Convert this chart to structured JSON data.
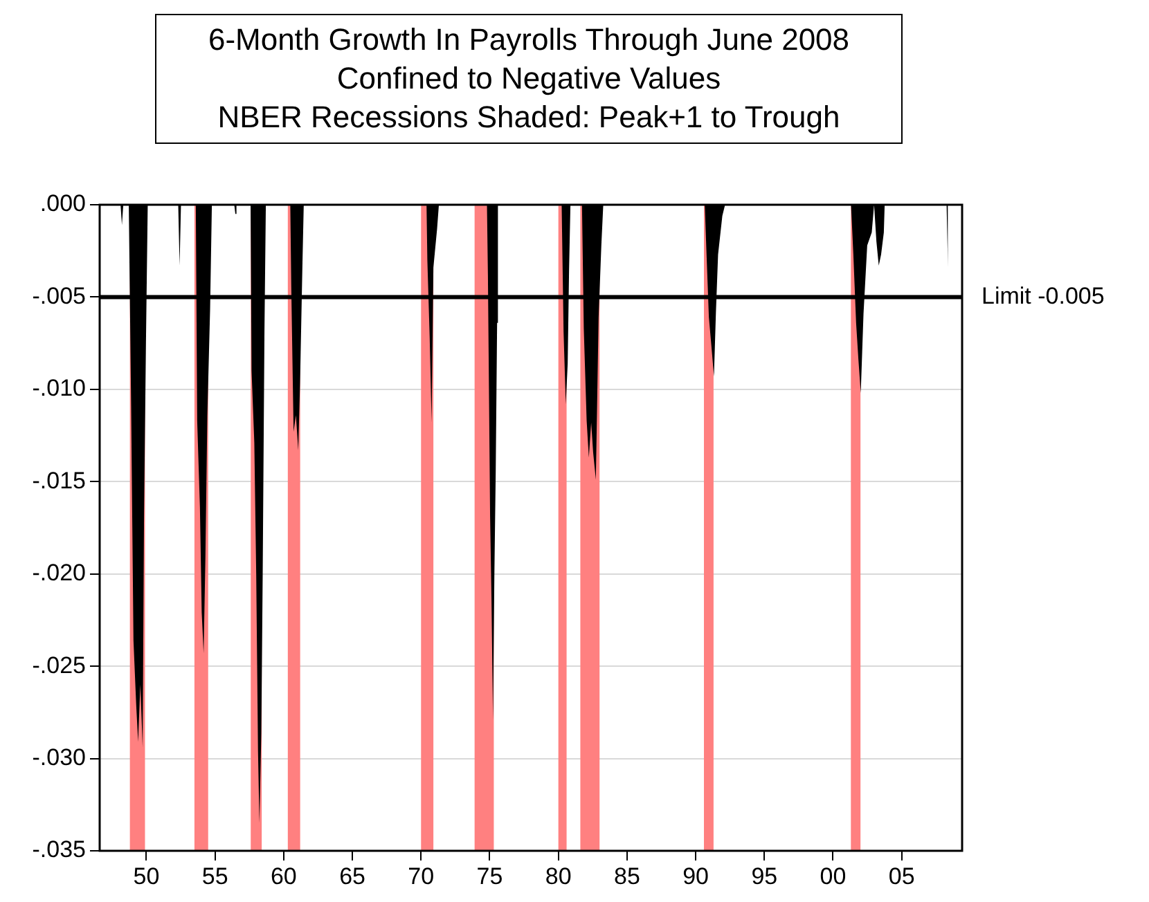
{
  "chart_data": {
    "type": "area",
    "title": "6-Month Growth In Payrolls Through June 2008\nConfined to Negative Values\nNBER Recessions Shaded: Peak+1 to Trough",
    "x": [
      1948.1,
      1948.12,
      1948.22,
      1948.32,
      1948.72,
      1948.89,
      1949.06,
      1949.26,
      1949.4,
      1949.56,
      1949.73,
      1949.83,
      1949.97,
      1950.1,
      1952.32,
      1952.42,
      1952.52,
      1953.6,
      1953.7,
      1953.9,
      1954.03,
      1954.17,
      1954.3,
      1954.44,
      1954.64,
      1954.77,
      1956.4,
      1956.48,
      1956.56,
      1957.59,
      1957.66,
      1957.86,
      1958.0,
      1958.13,
      1958.23,
      1958.37,
      1958.47,
      1958.6,
      1958.7,
      1960.48,
      1960.55,
      1960.72,
      1960.89,
      1961.06,
      1961.19,
      1961.36,
      1961.46,
      1970.4,
      1970.46,
      1970.63,
      1970.77,
      1970.9,
      1971.17,
      1971.3,
      1974.8,
      1974.87,
      1975.03,
      1975.13,
      1975.24,
      1975.34,
      1975.44,
      1975.54,
      1975.6,
      1980.24,
      1980.38,
      1980.54,
      1980.68,
      1980.78,
      1980.88,
      1981.72,
      1981.85,
      1982.06,
      1982.22,
      1982.39,
      1982.53,
      1982.73,
      1982.93,
      1983.13,
      1983.27,
      1990.66,
      1990.79,
      1990.96,
      1991.16,
      1991.33,
      1991.47,
      1991.63,
      1991.94,
      1992.14,
      2001.31,
      2001.48,
      2001.68,
      2001.85,
      2002.02,
      2002.22,
      2002.49,
      2002.82,
      2002.99,
      2003.16,
      2003.33,
      2003.5,
      2003.7,
      2003.76,
      2008.27,
      2008.37
    ],
    "series": [
      {
        "color": "#000000",
        "values": [
          0,
          0,
          -0.0011,
          0,
          0,
          -0.0109,
          -0.0236,
          -0.0271,
          -0.0291,
          -0.026,
          -0.0294,
          -0.0169,
          -0.0075,
          0,
          0,
          -0.0033,
          0,
          0,
          -0.0117,
          -0.0164,
          -0.0221,
          -0.0243,
          -0.0191,
          -0.0114,
          -0.0057,
          0,
          0,
          -0.0005,
          0,
          0,
          -0.009,
          -0.0129,
          -0.0201,
          -0.0296,
          -0.0335,
          -0.0286,
          -0.0201,
          -0.0068,
          0,
          0,
          -0.0044,
          -0.0123,
          -0.0114,
          -0.0133,
          -0.0097,
          -0.0034,
          0,
          0,
          -0.003,
          -0.0072,
          -0.0118,
          -0.0034,
          -0.0013,
          0,
          0,
          -0.0038,
          -0.0169,
          -0.0214,
          -0.0279,
          -0.0201,
          -0.0144,
          -0.0064,
          0,
          0,
          -0.0069,
          -0.0108,
          -0.0086,
          -0.0035,
          0,
          0,
          -0.0067,
          -0.0117,
          -0.0137,
          -0.0118,
          -0.0134,
          -0.0149,
          -0.0061,
          -0.0022,
          0,
          0,
          -0.0027,
          -0.0061,
          -0.0078,
          -0.0093,
          -0.0059,
          -0.0027,
          -0.0006,
          0,
          0,
          -0.0027,
          -0.0064,
          -0.0084,
          -0.0102,
          -0.0059,
          -0.0022,
          -0.0015,
          0,
          -0.002,
          -0.0033,
          -0.0027,
          -0.0015,
          0,
          0,
          -0.0034
        ]
      }
    ],
    "xlim": [
      1946.6,
      2009.4
    ],
    "xticks": [
      {
        "value": 1950,
        "label": "50"
      },
      {
        "value": 1955,
        "label": "55"
      },
      {
        "value": 1960,
        "label": "60"
      },
      {
        "value": 1965,
        "label": "65"
      },
      {
        "value": 1970,
        "label": "70"
      },
      {
        "value": 1975,
        "label": "75"
      },
      {
        "value": 1980,
        "label": "80"
      },
      {
        "value": 1985,
        "label": "85"
      },
      {
        "value": 1990,
        "label": "90"
      },
      {
        "value": 1995,
        "label": "95"
      },
      {
        "value": 2000,
        "label": "00"
      },
      {
        "value": 2005,
        "label": "05"
      }
    ],
    "ylim": [
      -0.035,
      0
    ],
    "yticks": [
      {
        "value": 0,
        "label": ".000"
      },
      {
        "value": -0.005,
        "label": "-.005"
      },
      {
        "value": -0.01,
        "label": "-.010"
      },
      {
        "value": -0.015,
        "label": "-.015"
      },
      {
        "value": -0.02,
        "label": "-.020"
      },
      {
        "value": -0.025,
        "label": "-.025"
      },
      {
        "value": -0.03,
        "label": "-.030"
      },
      {
        "value": -0.035,
        "label": "-.035"
      }
    ],
    "grid": "y",
    "ref_lines": [
      {
        "axis": "y",
        "value": -0.005,
        "label": "Limit -0.005",
        "color": "#000000"
      }
    ],
    "bands": [
      {
        "axis": "x",
        "from": 1948.8,
        "to": 1949.9,
        "color": "#ff8080"
      },
      {
        "axis": "x",
        "from": 1953.5,
        "to": 1954.5,
        "color": "#ff8080"
      },
      {
        "axis": "x",
        "from": 1957.6,
        "to": 1958.4,
        "color": "#ff8080"
      },
      {
        "axis": "x",
        "from": 1960.3,
        "to": 1961.2,
        "color": "#ff8080"
      },
      {
        "axis": "x",
        "from": 1970.0,
        "to": 1970.9,
        "color": "#ff8080"
      },
      {
        "axis": "x",
        "from": 1973.9,
        "to": 1975.3,
        "color": "#ff8080"
      },
      {
        "axis": "x",
        "from": 1980.0,
        "to": 1980.6,
        "color": "#ff8080"
      },
      {
        "axis": "x",
        "from": 1981.6,
        "to": 1983.0,
        "color": "#ff8080"
      },
      {
        "axis": "x",
        "from": 1990.6,
        "to": 1991.3,
        "color": "#ff8080"
      },
      {
        "axis": "x",
        "from": 2001.3,
        "to": 2002.0,
        "color": "#ff8080"
      }
    ]
  }
}
